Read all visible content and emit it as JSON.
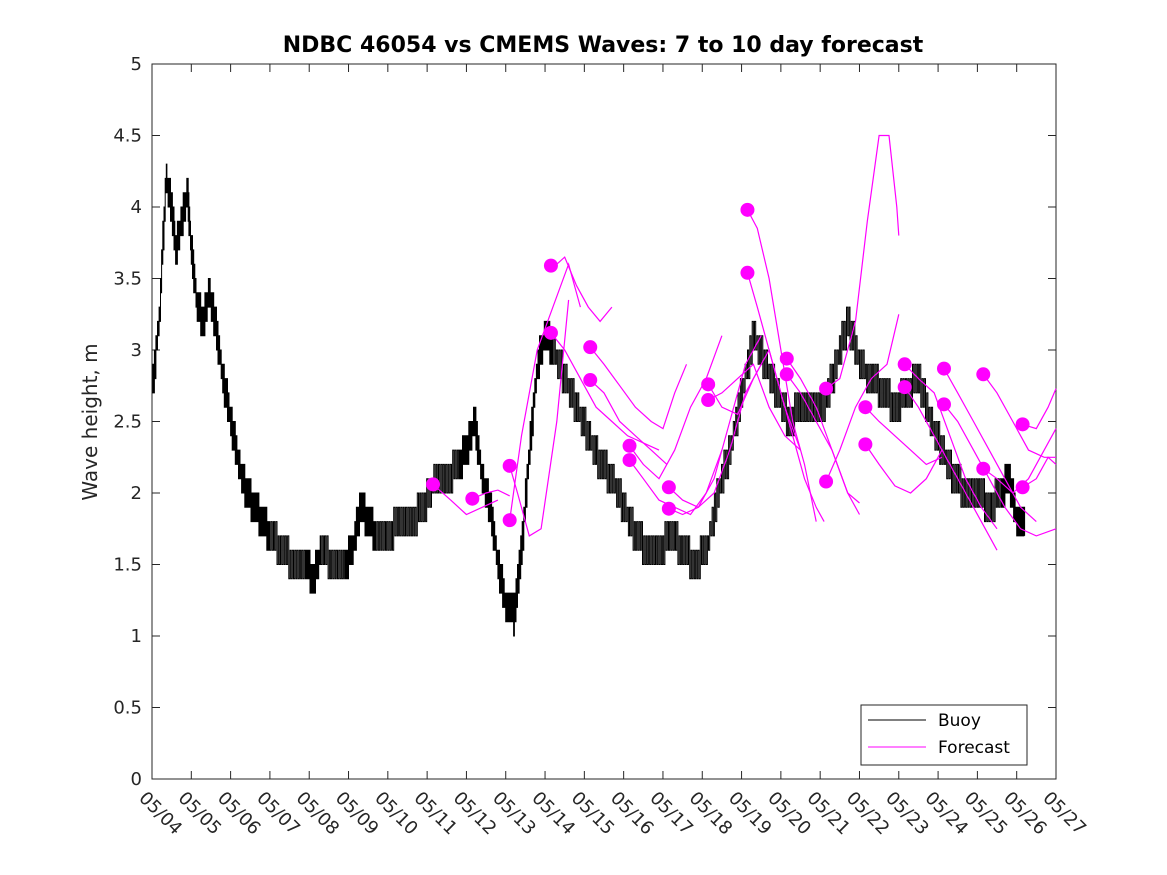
{
  "chart_data": {
    "type": "line",
    "title": "NDBC 46054 vs CMEMS Waves: 7 to 10 day forecast",
    "xlabel": "",
    "ylabel": "Wave height, m",
    "ylim": [
      0,
      5
    ],
    "yticks": [
      "0",
      "0.5",
      "1",
      "1.5",
      "2",
      "2.5",
      "3",
      "3.5",
      "4",
      "4.5",
      "5"
    ],
    "xlim_day": [
      4,
      27
    ],
    "xticks": [
      "05/04",
      "05/05",
      "05/06",
      "05/07",
      "05/08",
      "05/09",
      "05/10",
      "05/11",
      "05/12",
      "05/13",
      "05/14",
      "05/15",
      "05/16",
      "05/17",
      "05/18",
      "05/19",
      "05/20",
      "05/21",
      "05/22",
      "05/23",
      "05/24",
      "05/25",
      "05/26",
      "05/27"
    ],
    "grid": false,
    "legend_position": "bottom-right",
    "colors": {
      "buoy": "#000000",
      "forecast": "#ff00ff"
    },
    "series": [
      {
        "name": "Buoy",
        "x": [
          4.0,
          4.2,
          4.35,
          4.5,
          4.6,
          4.75,
          4.9,
          5.0,
          5.15,
          5.3,
          5.45,
          5.6,
          5.8,
          6.0,
          6.2,
          6.4,
          6.6,
          6.8,
          7.0,
          7.3,
          7.6,
          7.9,
          8.1,
          8.3,
          8.6,
          8.9,
          9.1,
          9.3,
          9.5,
          9.7,
          10.0,
          10.3,
          10.6,
          10.9,
          11.2,
          11.5,
          11.8,
          12.0,
          12.2,
          12.4,
          12.6,
          12.8,
          13.0,
          13.2,
          13.4,
          13.6,
          13.8,
          14.0,
          14.2,
          14.5,
          14.8,
          15.1,
          15.4,
          15.7,
          16.0,
          16.3,
          16.6,
          16.9,
          17.2,
          17.5,
          17.8,
          18.1,
          18.4,
          18.7,
          19.0,
          19.3,
          19.6,
          19.9,
          20.2,
          20.5,
          20.8,
          21.1,
          21.4,
          21.7,
          22.0,
          22.3,
          22.6,
          22.9,
          23.2,
          23.5,
          23.8,
          24.1,
          24.4,
          24.7,
          25.0,
          25.3,
          25.6,
          25.8,
          26.0,
          26.2
        ],
        "y": [
          2.7,
          3.3,
          4.2,
          4.0,
          3.7,
          3.9,
          4.1,
          3.7,
          3.3,
          3.2,
          3.4,
          3.2,
          2.8,
          2.5,
          2.2,
          2.0,
          1.9,
          1.8,
          1.7,
          1.6,
          1.5,
          1.5,
          1.4,
          1.6,
          1.5,
          1.5,
          1.6,
          1.9,
          1.8,
          1.7,
          1.7,
          1.8,
          1.8,
          1.9,
          2.1,
          2.1,
          2.2,
          2.3,
          2.5,
          2.1,
          1.9,
          1.5,
          1.2,
          1.15,
          1.6,
          2.3,
          2.9,
          3.1,
          3.0,
          2.8,
          2.6,
          2.4,
          2.2,
          2.1,
          1.9,
          1.7,
          1.6,
          1.6,
          1.7,
          1.6,
          1.5,
          1.6,
          2.0,
          2.3,
          2.7,
          3.1,
          2.9,
          2.7,
          2.5,
          2.6,
          2.6,
          2.6,
          2.9,
          3.2,
          2.9,
          2.8,
          2.7,
          2.6,
          2.7,
          2.8,
          2.5,
          2.3,
          2.1,
          2.0,
          2.0,
          1.9,
          2.0,
          2.1,
          1.8,
          1.8
        ]
      },
      {
        "name": "Forecast",
        "runs": [
          {
            "x": [
              11.15,
              11.6,
              12.0,
              12.4,
              12.8
            ],
            "y": [
              2.06,
              1.95,
              1.85,
              1.9,
              1.95
            ]
          },
          {
            "x": [
              12.15,
              12.5,
              12.8,
              13.1
            ],
            "y": [
              1.96,
              2.0,
              2.02,
              1.98
            ]
          },
          {
            "x": [
              13.1,
              13.3,
              13.6,
              13.9,
              14.3,
              14.6
            ],
            "y": [
              2.19,
              2.0,
              1.7,
              1.75,
              2.5,
              3.35
            ]
          },
          {
            "x": [
              13.1,
              13.4,
              13.8,
              14.2,
              14.6,
              14.9
            ],
            "y": [
              1.81,
              2.4,
              3.0,
              3.3,
              3.6,
              3.3
            ]
          },
          {
            "x": [
              14.15,
              14.3,
              14.5,
              14.8,
              15.1,
              15.4,
              15.7
            ],
            "y": [
              3.59,
              3.6,
              3.65,
              3.45,
              3.3,
              3.2,
              3.3
            ]
          },
          {
            "x": [
              14.15,
              14.5,
              14.9,
              15.3,
              15.7,
              16.1,
              16.5,
              16.9
            ],
            "y": [
              3.12,
              3.0,
              2.8,
              2.6,
              2.5,
              2.4,
              2.35,
              2.3
            ]
          },
          {
            "x": [
              15.15,
              15.5,
              15.9,
              16.3,
              16.7,
              17.0,
              17.3,
              17.6
            ],
            "y": [
              3.02,
              2.9,
              2.75,
              2.6,
              2.5,
              2.45,
              2.7,
              2.9
            ]
          },
          {
            "x": [
              15.15,
              15.5,
              15.9,
              16.3,
              16.7,
              17.1
            ],
            "y": [
              2.79,
              2.7,
              2.5,
              2.4,
              2.3,
              2.2
            ]
          },
          {
            "x": [
              16.15,
              16.5,
              16.9,
              17.3,
              17.7,
              18.1,
              18.5
            ],
            "y": [
              2.33,
              2.2,
              2.1,
              2.3,
              2.6,
              2.8,
              3.1
            ]
          },
          {
            "x": [
              16.15,
              16.5,
              16.9,
              17.3,
              17.7,
              18.1,
              18.5
            ],
            "y": [
              2.23,
              2.1,
              1.95,
              1.9,
              1.85,
              2.0,
              2.3
            ]
          },
          {
            "x": [
              17.15,
              17.5,
              17.9,
              18.3,
              18.7,
              19.1,
              19.5
            ],
            "y": [
              2.04,
              1.95,
              1.9,
              2.0,
              2.3,
              2.7,
              2.9
            ]
          },
          {
            "x": [
              17.15,
              17.5,
              17.9,
              18.3,
              18.7,
              19.1,
              19.5
            ],
            "y": [
              1.89,
              1.85,
              1.9,
              2.1,
              2.5,
              2.9,
              3.1
            ]
          },
          {
            "x": [
              18.15,
              18.5,
              18.9,
              19.3,
              19.7,
              20.1,
              20.5
            ],
            "y": [
              2.76,
              2.6,
              2.55,
              2.8,
              3.0,
              2.6,
              2.3
            ]
          },
          {
            "x": [
              18.15,
              18.5,
              18.9,
              19.3,
              19.7,
              20.1,
              20.5
            ],
            "y": [
              2.65,
              2.7,
              2.8,
              2.9,
              2.6,
              2.4,
              2.3
            ]
          },
          {
            "x": [
              19.15,
              19.4,
              19.7,
              20.0,
              20.3,
              20.6,
              20.9
            ],
            "y": [
              3.98,
              3.85,
              3.5,
              3.0,
              2.5,
              2.2,
              1.8
            ]
          },
          {
            "x": [
              19.15,
              19.4,
              19.7,
              20.0,
              20.3,
              20.6,
              20.9,
              21.1
            ],
            "y": [
              3.54,
              3.3,
              3.0,
              2.7,
              2.4,
              2.1,
              1.9,
              1.8
            ]
          },
          {
            "x": [
              20.15,
              20.5,
              20.9,
              21.3,
              21.7,
              22.0
            ],
            "y": [
              2.94,
              2.8,
              2.6,
              2.3,
              2.0,
              1.93
            ]
          },
          {
            "x": [
              20.15,
              20.5,
              20.9,
              21.3,
              21.7,
              22.0
            ],
            "y": [
              2.83,
              2.7,
              2.5,
              2.3,
              2.0,
              1.85
            ]
          },
          {
            "x": [
              21.15,
              21.5,
              21.9,
              22.2,
              22.5,
              22.75,
              22.95,
              23.0
            ],
            "y": [
              2.73,
              2.8,
              3.2,
              3.9,
              4.5,
              4.5,
              4.0,
              3.8
            ]
          },
          {
            "x": [
              21.15,
              21.5,
              21.9,
              22.3,
              22.7,
              23.0
            ],
            "y": [
              2.08,
              2.3,
              2.6,
              2.8,
              2.9,
              3.25
            ]
          },
          {
            "x": [
              22.15,
              22.5,
              22.9,
              23.3,
              23.7,
              24.1
            ],
            "y": [
              2.6,
              2.5,
              2.4,
              2.3,
              2.2,
              2.25
            ]
          },
          {
            "x": [
              22.15,
              22.5,
              22.9,
              23.3,
              23.7,
              24.1
            ],
            "y": [
              2.34,
              2.2,
              2.05,
              2.0,
              2.1,
              2.3
            ]
          },
          {
            "x": [
              23.15,
              23.5,
              23.9,
              24.3,
              24.7,
              25.1,
              25.5
            ],
            "y": [
              2.9,
              2.8,
              2.7,
              2.4,
              2.1,
              1.9,
              1.75
            ]
          },
          {
            "x": [
              23.15,
              23.5,
              23.9,
              24.3,
              24.7,
              25.1,
              25.5
            ],
            "y": [
              2.74,
              2.6,
              2.4,
              2.2,
              2.0,
              1.8,
              1.6
            ]
          },
          {
            "x": [
              24.15,
              24.5,
              24.9,
              25.3,
              25.7,
              26.1,
              26.5
            ],
            "y": [
              2.87,
              2.7,
              2.5,
              2.3,
              2.1,
              1.9,
              1.8
            ]
          },
          {
            "x": [
              24.15,
              24.5,
              24.9,
              25.3,
              25.7,
              26.1,
              26.5,
              27.0
            ],
            "y": [
              2.62,
              2.5,
              2.3,
              2.1,
              1.9,
              1.75,
              1.7,
              1.75
            ]
          },
          {
            "x": [
              25.15,
              25.5,
              25.9,
              26.3,
              26.7,
              27.0
            ],
            "y": [
              2.83,
              2.7,
              2.5,
              2.3,
              2.25,
              2.25
            ]
          },
          {
            "x": [
              25.15,
              25.5,
              25.9,
              26.3,
              26.7,
              27.0
            ],
            "y": [
              2.17,
              2.1,
              2.0,
              2.1,
              2.3,
              2.45
            ]
          },
          {
            "x": [
              26.15,
              26.5,
              26.8,
              27.0
            ],
            "y": [
              2.48,
              2.45,
              2.6,
              2.73
            ]
          },
          {
            "x": [
              26.15,
              26.5,
              26.8,
              27.0
            ],
            "y": [
              2.04,
              2.1,
              2.25,
              2.2
            ]
          }
        ]
      }
    ]
  }
}
